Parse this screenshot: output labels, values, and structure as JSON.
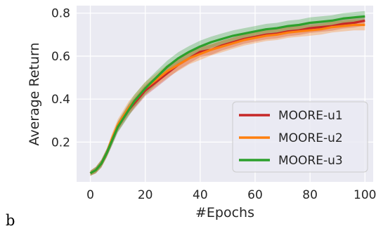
{
  "panel_label": "b",
  "colors": {
    "plot_background": "#eaeaf2",
    "grid": "#ffffff",
    "text": "#262626"
  },
  "chart_data": {
    "type": "line",
    "title": "",
    "xlabel": "#Epochs",
    "ylabel": "Average Return",
    "xlim": [
      -5,
      103
    ],
    "ylim": [
      0.015,
      0.835
    ],
    "xticks": [
      0,
      20,
      40,
      60,
      80,
      100
    ],
    "yticks": [
      0.2,
      0.4,
      0.6,
      0.8
    ],
    "x_tick_labels": [
      "0",
      "20",
      "40",
      "60",
      "80",
      "100"
    ],
    "y_tick_labels": [
      "0.2",
      "0.4",
      "0.6",
      "0.8"
    ],
    "grid": true,
    "legend_position": "lower-right",
    "x": [
      0,
      2,
      4,
      6,
      8,
      10,
      12,
      14,
      16,
      18,
      20,
      24,
      28,
      32,
      36,
      40,
      44,
      48,
      52,
      56,
      60,
      64,
      68,
      72,
      76,
      80,
      84,
      88,
      92,
      96,
      100
    ],
    "series": [
      {
        "name": "MOORE-u1",
        "color": "#c62828",
        "values": [
          0.055,
          0.07,
          0.1,
          0.15,
          0.21,
          0.27,
          0.31,
          0.35,
          0.38,
          0.41,
          0.44,
          0.48,
          0.52,
          0.56,
          0.59,
          0.62,
          0.63,
          0.65,
          0.665,
          0.68,
          0.69,
          0.7,
          0.705,
          0.715,
          0.72,
          0.73,
          0.735,
          0.74,
          0.75,
          0.755,
          0.765
        ],
        "band": [
          0.012,
          0.015,
          0.018,
          0.02,
          0.022,
          0.022,
          0.024,
          0.025,
          0.026,
          0.026,
          0.026,
          0.026,
          0.026,
          0.025,
          0.024,
          0.024,
          0.024,
          0.023,
          0.023,
          0.022,
          0.022,
          0.022,
          0.022,
          0.022,
          0.022,
          0.022,
          0.022,
          0.022,
          0.022,
          0.022,
          0.022
        ]
      },
      {
        "name": "MOORE-u2",
        "color": "#ff7f0e",
        "values": [
          0.055,
          0.07,
          0.1,
          0.15,
          0.22,
          0.28,
          0.32,
          0.36,
          0.39,
          0.42,
          0.45,
          0.49,
          0.53,
          0.56,
          0.59,
          0.61,
          0.63,
          0.645,
          0.66,
          0.675,
          0.685,
          0.695,
          0.7,
          0.71,
          0.715,
          0.72,
          0.725,
          0.735,
          0.74,
          0.745,
          0.745
        ],
        "band": [
          0.012,
          0.015,
          0.018,
          0.02,
          0.024,
          0.026,
          0.028,
          0.03,
          0.03,
          0.03,
          0.03,
          0.03,
          0.03,
          0.029,
          0.028,
          0.028,
          0.027,
          0.027,
          0.026,
          0.026,
          0.025,
          0.025,
          0.025,
          0.025,
          0.025,
          0.025,
          0.025,
          0.025,
          0.025,
          0.025,
          0.025
        ]
      },
      {
        "name": "MOORE-u3",
        "color": "#2ca02c",
        "values": [
          0.055,
          0.07,
          0.1,
          0.15,
          0.21,
          0.27,
          0.31,
          0.35,
          0.39,
          0.42,
          0.45,
          0.5,
          0.55,
          0.59,
          0.62,
          0.645,
          0.665,
          0.68,
          0.695,
          0.705,
          0.715,
          0.725,
          0.73,
          0.74,
          0.745,
          0.755,
          0.76,
          0.765,
          0.775,
          0.78,
          0.785
        ],
        "band": [
          0.012,
          0.015,
          0.018,
          0.02,
          0.024,
          0.026,
          0.028,
          0.03,
          0.03,
          0.03,
          0.03,
          0.03,
          0.029,
          0.028,
          0.027,
          0.027,
          0.026,
          0.026,
          0.025,
          0.025,
          0.025,
          0.025,
          0.025,
          0.025,
          0.025,
          0.025,
          0.025,
          0.025,
          0.025,
          0.025,
          0.025
        ]
      }
    ]
  }
}
